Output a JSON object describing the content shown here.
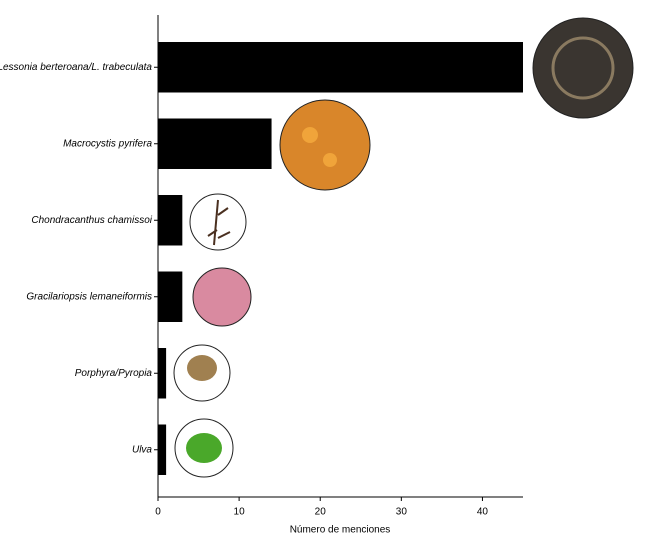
{
  "chart_data": {
    "type": "hbar",
    "categories": [
      "Lessonia berteroana/L. trabeculata",
      "Macrocystis pyrifera",
      "Chondracanthus chamissoi",
      "Gracilariopsis lemaneiformis",
      "Porphyra/Pyropia",
      "Ulva"
    ],
    "values": [
      45,
      14,
      3,
      3,
      1,
      1
    ],
    "color": "#000000",
    "xlabel": "Número de menciones",
    "xlim": [
      0,
      45
    ],
    "xticks": [
      0,
      10,
      20,
      30,
      40
    ],
    "grid": false
  }
}
